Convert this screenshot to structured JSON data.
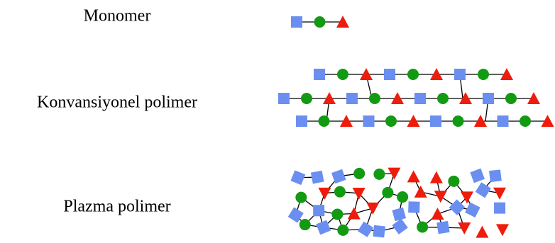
{
  "labels": [
    "Monomer",
    "Konvansiyonel polimer",
    "Plazma polimer"
  ]
}
